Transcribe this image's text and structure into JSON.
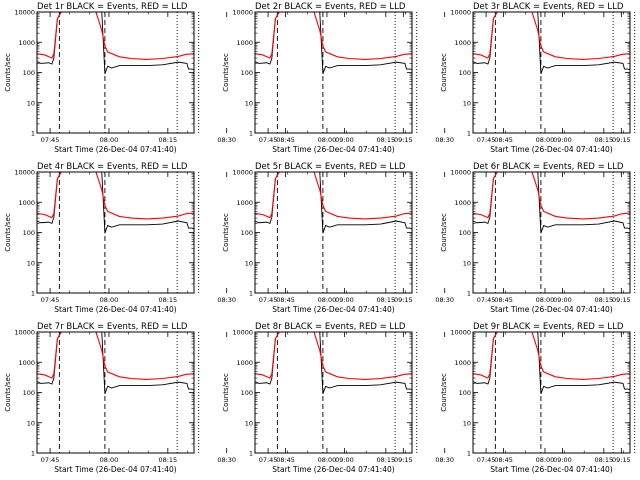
{
  "chart_data": {
    "type": "line",
    "y_scale": "log",
    "ylim": [
      1,
      10000
    ],
    "x_range": [
      "07:41:40",
      "08:21:40"
    ],
    "x_tick_labels": [
      "07:45",
      "08:00",
      "08:15",
      "08:30",
      "08:45",
      "09:00",
      "09:15"
    ],
    "y_tick_labels": [
      "1",
      "10",
      "100",
      "1000",
      "10000"
    ],
    "ylabel": "Counts/sec",
    "xlabel": "Start Time (26-Dec-04 07:41:40)",
    "grid": false,
    "legend": "none",
    "colors": {
      "events": "#000000",
      "lld": "#ff0000",
      "axes": "#000000"
    },
    "markers": {
      "dashed_lines_minutes": [
        5.7,
        17.3
      ],
      "dotted_lines_minutes": [
        35.7,
        41.2
      ]
    },
    "panels": [
      {
        "title": "Det 1r  BLACK = Events, RED = LLD",
        "series": [
          {
            "name": "BLACK = Events",
            "t": [
              0,
              1,
              3,
              3.8,
              4.3,
              5.2,
              6.2,
              7.6,
              8.2,
              8.7,
              9.2,
              15,
              16.5,
              17.3,
              18,
              19,
              21,
              24,
              28,
              32,
              36,
              38.2,
              38.6,
              39.5,
              40
            ],
            "values": [
              230,
              200,
              210,
              190,
              300,
              6000,
              12000,
              12000,
              12000,
              12000,
              12000,
              12000,
              12000,
              90,
              160,
              140,
              170,
              170,
              170,
              180,
              220,
              200,
              130,
              130,
              125
            ]
          },
          {
            "name": "RED = LLD",
            "t": [
              0,
              2,
              3.8,
              4.3,
              5.2,
              6.2,
              7.6,
              8.2,
              8.7,
              9.2,
              15,
              16.5,
              17.3,
              18,
              21,
              24,
              28,
              32,
              36,
              38,
              40
            ],
            "values": [
              420,
              380,
              300,
              420,
              6000,
              12000,
              12000,
              12000,
              12000,
              12000,
              12000,
              2500,
              750,
              480,
              330,
              290,
              270,
              290,
              340,
              400,
              420
            ]
          }
        ]
      },
      {
        "title": "Det 2r  BLACK = Events, RED = LLD",
        "series": [
          {
            "name": "BLACK = Events",
            "t": [
              0,
              1,
              3,
              3.8,
              4.3,
              5.2,
              6.2,
              7.6,
              8.2,
              8.7,
              9.2,
              15,
              16.5,
              17.3,
              18,
              19,
              21,
              24,
              28,
              32,
              36,
              38.2,
              38.6,
              39.5,
              40
            ],
            "values": [
              230,
              200,
              210,
              190,
              300,
              6000,
              12000,
              12000,
              12000,
              12000,
              12000,
              12000,
              12000,
              90,
              160,
              140,
              170,
              170,
              170,
              180,
              220,
              200,
              130,
              130,
              125
            ]
          },
          {
            "name": "RED = LLD",
            "t": [
              0,
              2,
              3.8,
              4.3,
              5.2,
              6.2,
              7.6,
              8.2,
              8.7,
              9.2,
              15,
              16.5,
              17.3,
              18,
              21,
              24,
              28,
              32,
              36,
              38,
              40
            ],
            "values": [
              420,
              380,
              300,
              420,
              6000,
              12000,
              12000,
              12000,
              12000,
              12000,
              12000,
              2500,
              750,
              480,
              330,
              290,
              270,
              290,
              340,
              400,
              420
            ]
          }
        ]
      },
      {
        "title": "Det 3r  BLACK = Events, RED = LLD",
        "series": [
          {
            "name": "BLACK = Events",
            "t": [
              0,
              1,
              3,
              3.8,
              4.3,
              5.2,
              6.2,
              7.6,
              8.2,
              8.7,
              9.2,
              15,
              16.5,
              17.3,
              18,
              19,
              21,
              24,
              28,
              32,
              36,
              38.2,
              38.6,
              39.5,
              40
            ],
            "values": [
              230,
              200,
              210,
              190,
              300,
              6000,
              12000,
              12000,
              12000,
              12000,
              12000,
              12000,
              12000,
              90,
              160,
              140,
              170,
              170,
              170,
              180,
              220,
              200,
              130,
              130,
              125
            ]
          },
          {
            "name": "RED = LLD",
            "t": [
              0,
              2,
              3.8,
              4.3,
              5.2,
              6.2,
              7.6,
              8.2,
              8.7,
              9.2,
              15,
              16.5,
              17.3,
              18,
              21,
              24,
              28,
              32,
              36,
              38,
              40
            ],
            "values": [
              420,
              380,
              300,
              420,
              6000,
              12000,
              12000,
              12000,
              12000,
              12000,
              12000,
              2500,
              750,
              480,
              330,
              290,
              270,
              290,
              340,
              400,
              420
            ]
          }
        ]
      },
      {
        "title": "Det 4r  BLACK = Events, RED = LLD",
        "series": [
          {
            "name": "BLACK = Events",
            "t": [
              0,
              1,
              3,
              3.8,
              4.3,
              5.2,
              6.2,
              7.6,
              8.2,
              8.7,
              9.2,
              15,
              16.5,
              17.3,
              18,
              19,
              21,
              24,
              28,
              32,
              36,
              38.2,
              38.6,
              39.5,
              40
            ],
            "values": [
              240,
              210,
              220,
              200,
              320,
              6000,
              12000,
              12000,
              12000,
              12000,
              12000,
              12000,
              12000,
              95,
              170,
              150,
              180,
              180,
              180,
              190,
              240,
              210,
              140,
              140,
              130
            ]
          },
          {
            "name": "RED = LLD",
            "t": [
              0,
              2,
              3.8,
              4.3,
              5.2,
              6.2,
              7.6,
              8.2,
              8.7,
              9.2,
              15,
              16.5,
              17.3,
              18,
              21,
              24,
              28,
              32,
              36,
              38,
              40
            ],
            "values": [
              430,
              390,
              310,
              430,
              6000,
              12000,
              12000,
              12000,
              12000,
              12000,
              12000,
              2600,
              780,
              500,
              340,
              300,
              280,
              300,
              350,
              420,
              440
            ]
          }
        ]
      },
      {
        "title": "Det 5r  BLACK = Events, RED = LLD",
        "series": [
          {
            "name": "BLACK = Events",
            "t": [
              0,
              1,
              3,
              3.8,
              4.3,
              5.2,
              6.2,
              7.6,
              8.2,
              8.7,
              9.2,
              15,
              16.5,
              17.3,
              18,
              19,
              21,
              24,
              28,
              32,
              36,
              38.2,
              38.6,
              39.5,
              40
            ],
            "values": [
              240,
              210,
              220,
              200,
              320,
              6000,
              12000,
              12000,
              12000,
              12000,
              12000,
              12000,
              12000,
              95,
              170,
              150,
              180,
              180,
              180,
              190,
              240,
              210,
              140,
              140,
              130
            ]
          },
          {
            "name": "RED = LLD",
            "t": [
              0,
              2,
              3.8,
              4.3,
              5.2,
              6.2,
              7.6,
              8.2,
              8.7,
              9.2,
              15,
              16.5,
              17.3,
              18,
              21,
              24,
              28,
              32,
              36,
              38,
              40
            ],
            "values": [
              430,
              390,
              310,
              430,
              6000,
              12000,
              12000,
              12000,
              12000,
              12000,
              12000,
              2600,
              780,
              500,
              340,
              300,
              280,
              300,
              350,
              420,
              440
            ]
          }
        ]
      },
      {
        "title": "Det 6r  BLACK = Events, RED = LLD",
        "series": [
          {
            "name": "BLACK = Events",
            "t": [
              0,
              1,
              3,
              3.8,
              4.3,
              5.2,
              6.2,
              7.6,
              8.2,
              8.7,
              9.2,
              15,
              16.5,
              17.3,
              18,
              19,
              21,
              24,
              28,
              32,
              36,
              38.2,
              38.6,
              39.5,
              40
            ],
            "values": [
              240,
              210,
              220,
              200,
              320,
              6000,
              12000,
              12000,
              12000,
              12000,
              12000,
              12000,
              12000,
              95,
              170,
              150,
              180,
              180,
              180,
              190,
              240,
              210,
              140,
              140,
              130
            ]
          },
          {
            "name": "RED = LLD",
            "t": [
              0,
              2,
              3.8,
              4.3,
              5.2,
              6.2,
              7.6,
              8.2,
              8.7,
              9.2,
              15,
              16.5,
              17.3,
              18,
              21,
              24,
              28,
              32,
              36,
              38,
              40
            ],
            "values": [
              430,
              390,
              310,
              430,
              6000,
              12000,
              12000,
              12000,
              12000,
              12000,
              12000,
              2600,
              780,
              500,
              340,
              300,
              280,
              300,
              350,
              420,
              440
            ]
          }
        ]
      },
      {
        "title": "Det 7r  BLACK = Events, RED = LLD",
        "series": [
          {
            "name": "BLACK = Events",
            "t": [
              0,
              1,
              3,
              3.8,
              4.3,
              5.2,
              6.2,
              7.6,
              8.2,
              8.7,
              9.2,
              15,
              16.5,
              17.3,
              18,
              19,
              21,
              24,
              28,
              32,
              36,
              38.2,
              38.6,
              39.5,
              40
            ],
            "values": [
              230,
              200,
              210,
              190,
              300,
              6000,
              12000,
              12000,
              12000,
              12000,
              12000,
              12000,
              12000,
              90,
              160,
              140,
              170,
              170,
              170,
              180,
              220,
              200,
              130,
              130,
              125
            ]
          },
          {
            "name": "RED = LLD",
            "t": [
              0,
              2,
              3.8,
              4.3,
              5.2,
              6.2,
              7.6,
              8.2,
              8.7,
              9.2,
              15,
              16.5,
              17.3,
              18,
              21,
              24,
              28,
              32,
              36,
              38,
              40
            ],
            "values": [
              420,
              380,
              300,
              420,
              6000,
              12000,
              12000,
              12000,
              12000,
              12000,
              12000,
              2500,
              750,
              480,
              330,
              290,
              270,
              290,
              340,
              400,
              420
            ]
          }
        ]
      },
      {
        "title": "Det 8r  BLACK = Events, RED = LLD",
        "series": [
          {
            "name": "BLACK = Events",
            "t": [
              0,
              1,
              3,
              3.8,
              4.3,
              5.2,
              6.2,
              7.6,
              8.2,
              8.7,
              9.2,
              15,
              16.5,
              17.3,
              18,
              19,
              21,
              24,
              28,
              32,
              36,
              38.2,
              38.6,
              39.5,
              40
            ],
            "values": [
              230,
              200,
              210,
              190,
              300,
              6000,
              12000,
              12000,
              12000,
              12000,
              12000,
              12000,
              12000,
              90,
              160,
              140,
              170,
              170,
              170,
              180,
              220,
              200,
              130,
              130,
              125
            ]
          },
          {
            "name": "RED = LLD",
            "t": [
              0,
              2,
              3.8,
              4.3,
              5.2,
              6.2,
              7.6,
              8.2,
              8.7,
              9.2,
              15,
              16.5,
              17.3,
              18,
              21,
              24,
              28,
              32,
              36,
              38,
              40
            ],
            "values": [
              420,
              380,
              300,
              420,
              6000,
              12000,
              12000,
              12000,
              12000,
              12000,
              12000,
              2500,
              750,
              480,
              330,
              290,
              270,
              290,
              340,
              400,
              420
            ]
          }
        ]
      },
      {
        "title": "Det 9r  BLACK = Events, RED = LLD",
        "series": [
          {
            "name": "BLACK = Events",
            "t": [
              0,
              1,
              3,
              3.8,
              4.3,
              5.2,
              6.2,
              7.6,
              8.2,
              8.7,
              9.2,
              15,
              16.5,
              17.3,
              18,
              19,
              21,
              24,
              28,
              32,
              36,
              38.2,
              38.6,
              39.5,
              40
            ],
            "values": [
              230,
              200,
              210,
              190,
              300,
              6000,
              12000,
              12000,
              12000,
              12000,
              12000,
              12000,
              12000,
              90,
              160,
              140,
              170,
              170,
              170,
              180,
              220,
              200,
              130,
              130,
              125
            ]
          },
          {
            "name": "RED = LLD",
            "t": [
              0,
              2,
              3.8,
              4.3,
              5.2,
              6.2,
              7.6,
              8.2,
              8.7,
              9.2,
              15,
              16.5,
              17.3,
              18,
              21,
              24,
              28,
              32,
              36,
              38,
              40
            ],
            "values": [
              420,
              380,
              300,
              420,
              6000,
              12000,
              12000,
              12000,
              12000,
              12000,
              12000,
              2500,
              750,
              480,
              330,
              290,
              270,
              290,
              340,
              400,
              420
            ]
          }
        ]
      }
    ]
  }
}
